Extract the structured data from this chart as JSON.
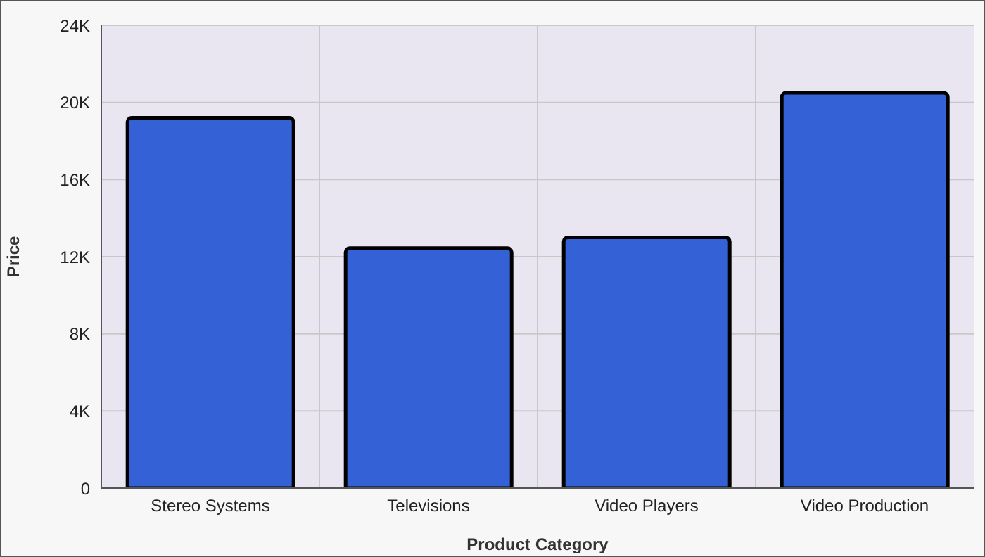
{
  "chart_data": {
    "type": "bar",
    "xlabel": "Product Category",
    "ylabel": "Price",
    "categories": [
      "Stereo Systems",
      "Televisions",
      "Video Players",
      "Video Production"
    ],
    "values": [
      19200,
      12450,
      13000,
      20500
    ],
    "color": "#3461d5",
    "ylim": [
      0,
      24000
    ],
    "yticks": [
      {
        "value": 0,
        "label": "0"
      },
      {
        "value": 4000,
        "label": "4K"
      },
      {
        "value": 8000,
        "label": "8K"
      },
      {
        "value": 12000,
        "label": "12K"
      },
      {
        "value": 16000,
        "label": "16K"
      },
      {
        "value": 20000,
        "label": "20K"
      },
      {
        "value": 24000,
        "label": "24K"
      }
    ],
    "grid": true,
    "legend": false
  }
}
